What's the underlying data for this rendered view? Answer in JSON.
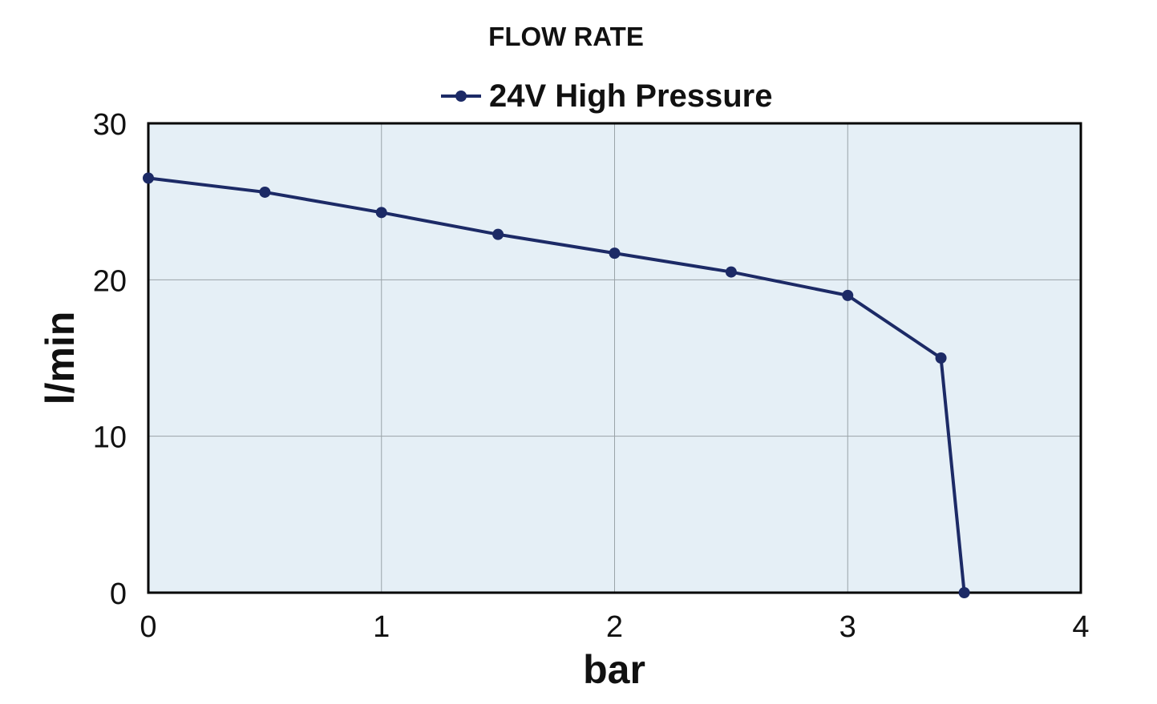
{
  "chart_data": {
    "type": "line",
    "title": "FLOW RATE",
    "xlabel": "bar",
    "ylabel": "l/min",
    "xlim": [
      0,
      4
    ],
    "ylim": [
      0,
      30
    ],
    "x_ticks": [
      0,
      1,
      2,
      3,
      4
    ],
    "y_ticks": [
      0,
      10,
      20,
      30
    ],
    "grid": true,
    "legend_position": "top",
    "plot_background": "#e5eff6",
    "series": [
      {
        "name": "24V High Pressure",
        "color": "#1c2a66",
        "marker": "circle",
        "x": [
          0,
          0.5,
          1,
          1.5,
          2,
          2.5,
          3,
          3.4,
          3.5
        ],
        "y": [
          26.5,
          25.6,
          24.3,
          22.9,
          21.7,
          20.5,
          19.0,
          15.0,
          0
        ]
      }
    ]
  }
}
